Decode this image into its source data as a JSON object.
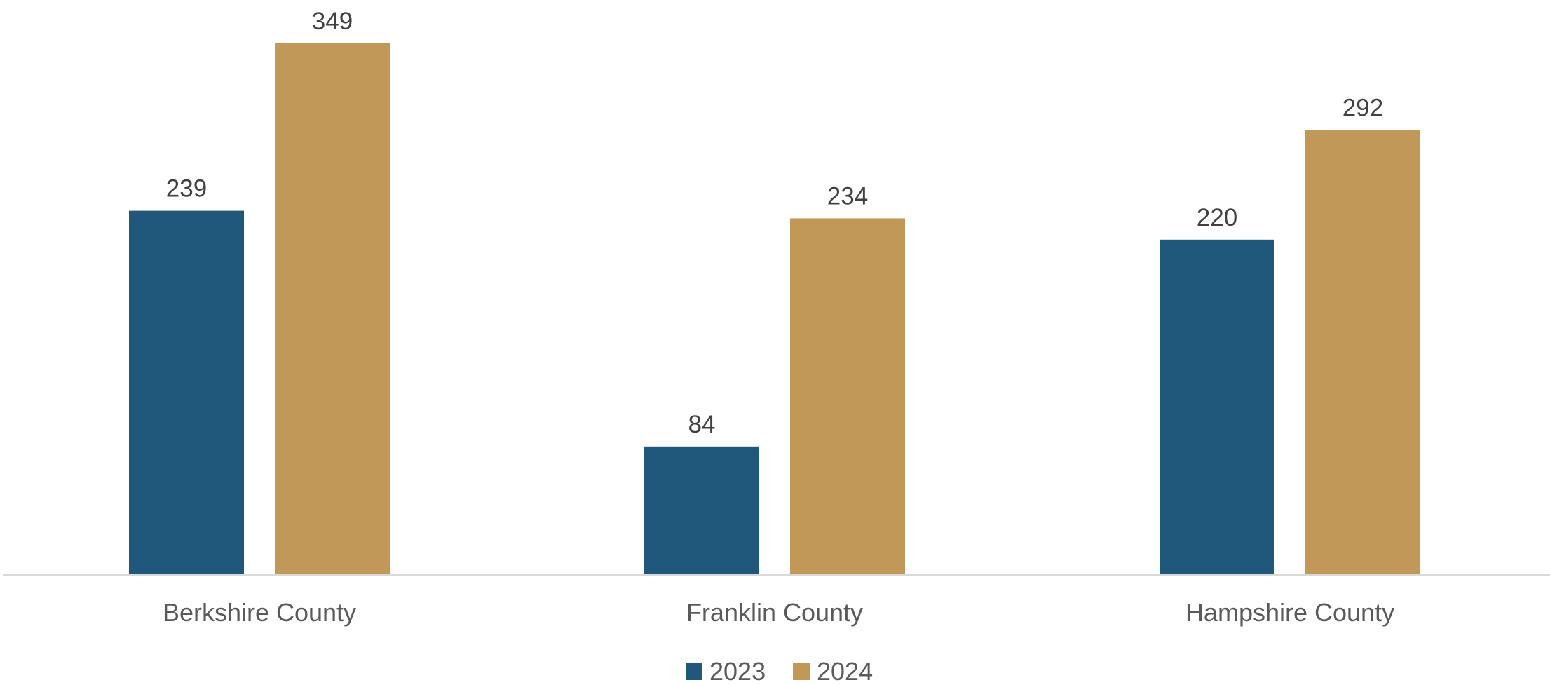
{
  "chart_data": {
    "type": "bar",
    "categories": [
      "Berkshire County",
      "Franklin County",
      "Hampshire County"
    ],
    "series": [
      {
        "name": "2023",
        "values": [
          239,
          84,
          220
        ],
        "color": "#1f587b"
      },
      {
        "name": "2024",
        "values": [
          349,
          234,
          292
        ],
        "color": "#c19857"
      }
    ],
    "ylim": [
      0,
      349
    ],
    "grid": false,
    "legend": "bottom-center",
    "data_labels": true,
    "axis_line_color": "#d9d9d9"
  }
}
